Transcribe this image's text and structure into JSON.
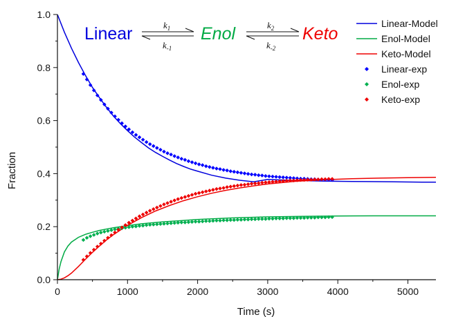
{
  "chart_data": {
    "type": "scatter",
    "title": "",
    "xlabel": "Time (s)",
    "ylabel": "Fraction",
    "xlim": [
      0,
      5400
    ],
    "ylim": [
      0,
      1.0
    ],
    "x_ticks": [
      "0",
      "1000",
      "2000",
      "3000",
      "4000",
      "5000"
    ],
    "y_ticks": [
      "0.0",
      "0.2",
      "0.4",
      "0.6",
      "0.8",
      "1.0"
    ],
    "legend_position": "top-right",
    "legend": [
      "Linear-Model",
      "Enol-Model",
      "Keto-Model",
      "Linear-exp",
      "Enol-exp",
      "Keto-exp"
    ],
    "series": [
      {
        "name": "Linear-Model",
        "kind": "line",
        "color": "#0000dd",
        "x": [
          0,
          100,
          200,
          300,
          400,
          500,
          600,
          700,
          800,
          900,
          1000,
          1100,
          1200,
          1300,
          1400,
          1500,
          1600,
          1700,
          1800,
          1900,
          2000,
          2200,
          2400,
          2600,
          2800,
          3000,
          3200,
          3400,
          3600,
          3800,
          4000,
          4400,
          4800,
          5200,
          5400
        ],
        "y": [
          1.0,
          0.933,
          0.873,
          0.819,
          0.77,
          0.725,
          0.686,
          0.65,
          0.617,
          0.588,
          0.562,
          0.538,
          0.517,
          0.497,
          0.48,
          0.465,
          0.451,
          0.438,
          0.427,
          0.417,
          0.409,
          0.394,
          0.383,
          0.375,
          0.369,
          0.378,
          0.376,
          0.374,
          0.373,
          0.372,
          0.371,
          0.37,
          0.369,
          0.368,
          0.368
        ]
      },
      {
        "name": "Enol-Model",
        "kind": "line",
        "color": "#00aa44",
        "x": [
          0,
          25,
          50,
          100,
          150,
          200,
          300,
          400,
          500,
          600,
          800,
          1000,
          1200,
          1500,
          2000,
          2500,
          3000,
          3500,
          4000,
          4500,
          5000,
          5400
        ],
        "y": [
          0,
          0.04,
          0.068,
          0.105,
          0.127,
          0.142,
          0.16,
          0.171,
          0.179,
          0.186,
          0.196,
          0.204,
          0.211,
          0.218,
          0.227,
          0.233,
          0.237,
          0.239,
          0.24,
          0.241,
          0.241,
          0.241
        ]
      },
      {
        "name": "Keto-Model",
        "kind": "line",
        "color": "#ee0000",
        "x": [
          0,
          50,
          100,
          150,
          200,
          300,
          400,
          500,
          600,
          700,
          800,
          1000,
          1200,
          1400,
          1600,
          1800,
          2000,
          2200,
          2400,
          2600,
          2800,
          3000,
          3400,
          3800,
          4200,
          4600,
          5000,
          5400
        ],
        "y": [
          0,
          0.002,
          0.007,
          0.015,
          0.025,
          0.05,
          0.077,
          0.103,
          0.127,
          0.15,
          0.17,
          0.205,
          0.234,
          0.259,
          0.28,
          0.298,
          0.313,
          0.326,
          0.337,
          0.346,
          0.354,
          0.361,
          0.371,
          0.377,
          0.381,
          0.383,
          0.385,
          0.386
        ]
      },
      {
        "name": "Linear-exp",
        "kind": "markers",
        "color": "#0000ff",
        "x": [
          370,
          420,
          470,
          520,
          570,
          620,
          670,
          720,
          770,
          820,
          870,
          920,
          970,
          1020,
          1070,
          1120,
          1170,
          1220,
          1270,
          1320,
          1370,
          1420,
          1470,
          1520,
          1570,
          1620,
          1670,
          1720,
          1770,
          1820,
          1870,
          1920,
          1970,
          2020,
          2070,
          2120,
          2170,
          2220,
          2270,
          2320,
          2370,
          2420,
          2470,
          2520,
          2570,
          2620,
          2670,
          2720,
          2770,
          2820,
          2870,
          2920,
          2970,
          3020,
          3070,
          3120,
          3170,
          3220,
          3270,
          3320,
          3370,
          3420,
          3470,
          3520,
          3570,
          3620,
          3670,
          3720,
          3770,
          3820,
          3870,
          3920
        ],
        "y": [
          0.776,
          0.755,
          0.734,
          0.714,
          0.695,
          0.678,
          0.661,
          0.645,
          0.63,
          0.616,
          0.603,
          0.59,
          0.578,
          0.567,
          0.556,
          0.546,
          0.537,
          0.528,
          0.519,
          0.511,
          0.504,
          0.497,
          0.49,
          0.483,
          0.477,
          0.472,
          0.466,
          0.461,
          0.456,
          0.452,
          0.447,
          0.443,
          0.439,
          0.435,
          0.432,
          0.428,
          0.425,
          0.422,
          0.419,
          0.417,
          0.414,
          0.412,
          0.409,
          0.407,
          0.405,
          0.403,
          0.401,
          0.399,
          0.397,
          0.396,
          0.394,
          0.393,
          0.391,
          0.39,
          0.389,
          0.388,
          0.387,
          0.386,
          0.385,
          0.384,
          0.383,
          0.382,
          0.381,
          0.381,
          0.38,
          0.379,
          0.379,
          0.378,
          0.378,
          0.377,
          0.377,
          0.376
        ]
      },
      {
        "name": "Enol-exp",
        "kind": "markers",
        "color": "#00b050",
        "x": [
          370,
          420,
          470,
          520,
          570,
          620,
          670,
          720,
          770,
          820,
          870,
          920,
          970,
          1020,
          1070,
          1120,
          1170,
          1220,
          1270,
          1320,
          1370,
          1420,
          1470,
          1520,
          1570,
          1620,
          1670,
          1720,
          1770,
          1820,
          1870,
          1920,
          1970,
          2020,
          2070,
          2120,
          2170,
          2220,
          2270,
          2320,
          2370,
          2420,
          2470,
          2520,
          2570,
          2620,
          2670,
          2720,
          2770,
          2820,
          2870,
          2920,
          2970,
          3020,
          3070,
          3120,
          3170,
          3220,
          3270,
          3320,
          3370,
          3420,
          3470,
          3520,
          3570,
          3620,
          3670,
          3720,
          3770,
          3820,
          3870,
          3920
        ],
        "y": [
          0.15,
          0.158,
          0.164,
          0.169,
          0.174,
          0.178,
          0.181,
          0.184,
          0.187,
          0.19,
          0.192,
          0.194,
          0.196,
          0.198,
          0.2,
          0.201,
          0.203,
          0.204,
          0.206,
          0.207,
          0.208,
          0.209,
          0.21,
          0.211,
          0.212,
          0.213,
          0.214,
          0.215,
          0.216,
          0.216,
          0.217,
          0.218,
          0.219,
          0.219,
          0.22,
          0.221,
          0.221,
          0.222,
          0.223,
          0.223,
          0.224,
          0.224,
          0.225,
          0.225,
          0.226,
          0.226,
          0.227,
          0.227,
          0.228,
          0.228,
          0.229,
          0.229,
          0.229,
          0.23,
          0.23,
          0.231,
          0.231,
          0.231,
          0.232,
          0.232,
          0.232,
          0.233,
          0.233,
          0.233,
          0.234,
          0.234,
          0.234,
          0.235,
          0.235,
          0.235,
          0.236,
          0.236
        ]
      },
      {
        "name": "Keto-exp",
        "kind": "markers",
        "color": "#ee0000",
        "x": [
          370,
          420,
          470,
          520,
          570,
          620,
          670,
          720,
          770,
          820,
          870,
          920,
          970,
          1020,
          1070,
          1120,
          1170,
          1220,
          1270,
          1320,
          1370,
          1420,
          1470,
          1520,
          1570,
          1620,
          1670,
          1720,
          1770,
          1820,
          1870,
          1920,
          1970,
          2020,
          2070,
          2120,
          2170,
          2220,
          2270,
          2320,
          2370,
          2420,
          2470,
          2520,
          2570,
          2620,
          2670,
          2720,
          2770,
          2820,
          2870,
          2920,
          2970,
          3020,
          3070,
          3120,
          3170,
          3220,
          3270,
          3320,
          3370,
          3420,
          3470,
          3520,
          3570,
          3620,
          3670,
          3720,
          3770,
          3820,
          3870,
          3920
        ],
        "y": [
          0.075,
          0.088,
          0.101,
          0.113,
          0.125,
          0.136,
          0.147,
          0.158,
          0.168,
          0.178,
          0.188,
          0.197,
          0.206,
          0.215,
          0.223,
          0.231,
          0.239,
          0.246,
          0.253,
          0.26,
          0.266,
          0.272,
          0.278,
          0.284,
          0.289,
          0.294,
          0.299,
          0.304,
          0.308,
          0.312,
          0.316,
          0.32,
          0.324,
          0.327,
          0.33,
          0.333,
          0.336,
          0.339,
          0.342,
          0.344,
          0.346,
          0.349,
          0.351,
          0.353,
          0.355,
          0.357,
          0.358,
          0.36,
          0.362,
          0.363,
          0.364,
          0.366,
          0.367,
          0.368,
          0.369,
          0.37,
          0.371,
          0.372,
          0.373,
          0.374,
          0.374,
          0.375,
          0.376,
          0.376,
          0.377,
          0.377,
          0.378,
          0.378,
          0.379,
          0.379,
          0.38,
          0.38
        ]
      }
    ],
    "annotation": {
      "species": [
        {
          "label": "Linear",
          "color": "#0000dd",
          "italic": false
        },
        {
          "label": "Enol",
          "color": "#00aa44",
          "italic": true
        },
        {
          "label": "Keto",
          "color": "#ee0000",
          "italic": true
        }
      ],
      "rates": [
        {
          "forward": "k",
          "forward_sub": "1",
          "reverse": "k",
          "reverse_sub": "-1"
        },
        {
          "forward": "k",
          "forward_sub": "2",
          "reverse": "k",
          "reverse_sub": "-2"
        }
      ]
    }
  }
}
